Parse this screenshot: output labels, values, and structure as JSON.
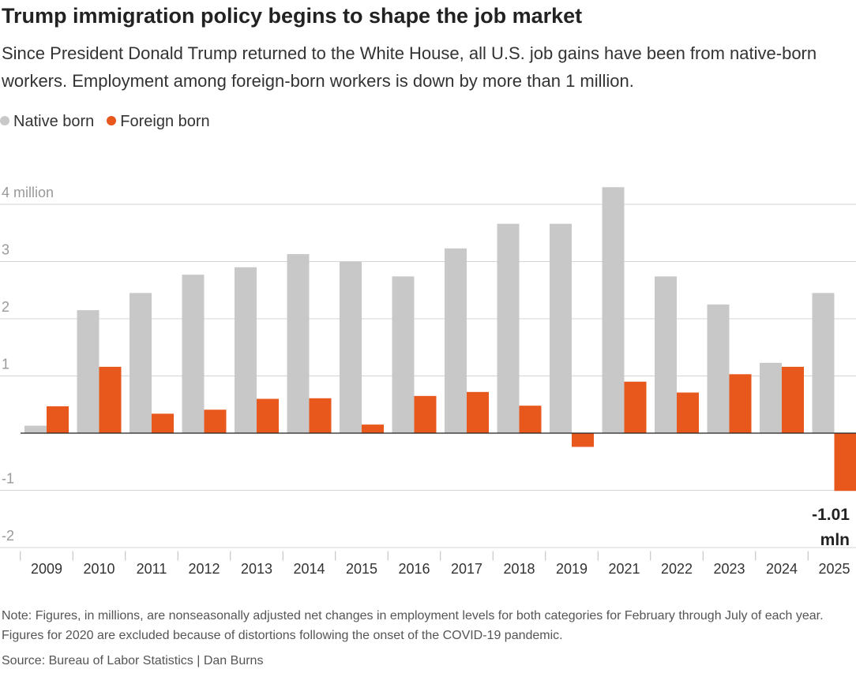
{
  "chart_data": {
    "type": "bar",
    "title": "Trump immigration policy begins to shape the job market",
    "subtitle": "Since President Donald Trump returned to the White House, all U.S. job gains have been from native-born workers. Employment among foreign-born workers is down by more than 1 million.",
    "categories": [
      "2009",
      "2010",
      "2011",
      "2012",
      "2013",
      "2014",
      "2015",
      "2016",
      "2017",
      "2018",
      "2019",
      "2021",
      "2022",
      "2023",
      "2024",
      "2025"
    ],
    "series": [
      {
        "name": "Native born",
        "color": "#c8c8c8",
        "values": [
          0.13,
          2.15,
          2.45,
          2.77,
          2.9,
          3.13,
          3.0,
          2.74,
          3.23,
          3.66,
          3.66,
          4.3,
          2.74,
          2.25,
          1.23,
          2.45
        ]
      },
      {
        "name": "Foreign born",
        "color": "#e8571b",
        "values": [
          0.47,
          1.16,
          0.34,
          0.41,
          0.6,
          0.61,
          0.15,
          0.65,
          0.72,
          0.48,
          -0.24,
          0.9,
          0.71,
          1.03,
          1.16,
          -1.01
        ],
        "value_labels": [
          null,
          null,
          null,
          null,
          null,
          null,
          null,
          null,
          null,
          null,
          null,
          null,
          null,
          null,
          null,
          "-1.01 mln"
        ]
      }
    ],
    "ylim": [
      -2.2,
      4.5
    ],
    "yticks": [
      {
        "value": 4,
        "label": "4 million"
      },
      3,
      2,
      1,
      -1,
      -2
    ],
    "grid": true,
    "note": "Note: Figures, in millions, are nonseasonally adjusted net changes in employment levels for both categories for February through July of each year. Figures for 2020 are excluded because of distortions following the onset of the COVID-19 pandemic.",
    "source": "Source: Bureau of Labor Statistics | Dan Burns"
  }
}
